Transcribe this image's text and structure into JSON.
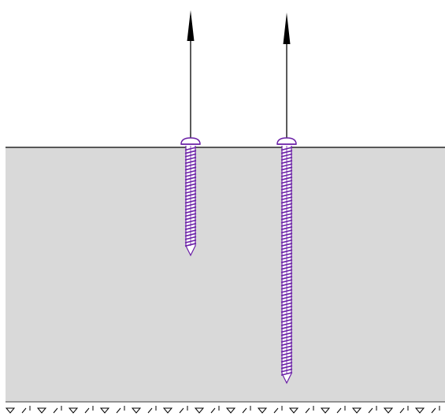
{
  "diagram": {
    "colors": {
      "background": "#ffffff",
      "block_fill": "#d9d9d9",
      "block_edge": "#000000",
      "screw": "#6a1fa6",
      "arrow": "#000000",
      "hatch": "#000000"
    },
    "elements": {
      "block": "concrete-block",
      "surface": "surface-line",
      "support": "ground-hatch",
      "screw_short": "short-screw-anchor",
      "screw_long": "long-screw-anchor",
      "arrow_short": "pull-out-force-arrow",
      "arrow_long": "pull-out-force-arrow"
    }
  }
}
